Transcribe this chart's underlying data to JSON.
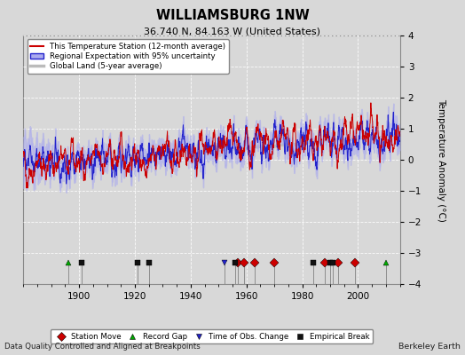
{
  "title": "WILLIAMSBURG 1NW",
  "subtitle": "36.740 N, 84.163 W (United States)",
  "ylabel": "Temperature Anomaly (°C)",
  "xlabel_note": "Data Quality Controlled and Aligned at Breakpoints",
  "credit": "Berkeley Earth",
  "ylim": [
    -4,
    4
  ],
  "xlim": [
    1880,
    2015
  ],
  "yticks": [
    -4,
    -3,
    -2,
    -1,
    0,
    1,
    2,
    3,
    4
  ],
  "xticks": [
    1900,
    1920,
    1940,
    1960,
    1980,
    2000
  ],
  "bg_color": "#d8d8d8",
  "plot_bg_color": "#d8d8d8",
  "station_color": "#cc0000",
  "regional_color": "#2222cc",
  "regional_fill_color": "#aaaaee",
  "global_color": "#bbbbbb",
  "legend_entries": [
    "This Temperature Station (12-month average)",
    "Regional Expectation with 95% uncertainty",
    "Global Land (5-year average)"
  ],
  "marker_events": {
    "station_move": {
      "color": "#cc0000",
      "marker": "D",
      "years": [
        1957,
        1959,
        1963,
        1970,
        1988,
        1993,
        1999
      ]
    },
    "record_gap": {
      "color": "#00aa00",
      "marker": "^",
      "years": [
        1896,
        2010
      ]
    },
    "time_obs_change": {
      "color": "#2222cc",
      "marker": "v",
      "years": [
        1952
      ]
    },
    "empirical_break": {
      "color": "#111111",
      "marker": "s",
      "years": [
        1901,
        1921,
        1925,
        1956,
        1984,
        1990,
        1991
      ]
    }
  },
  "seed": 42,
  "n_years": 135,
  "start_year": 1880
}
